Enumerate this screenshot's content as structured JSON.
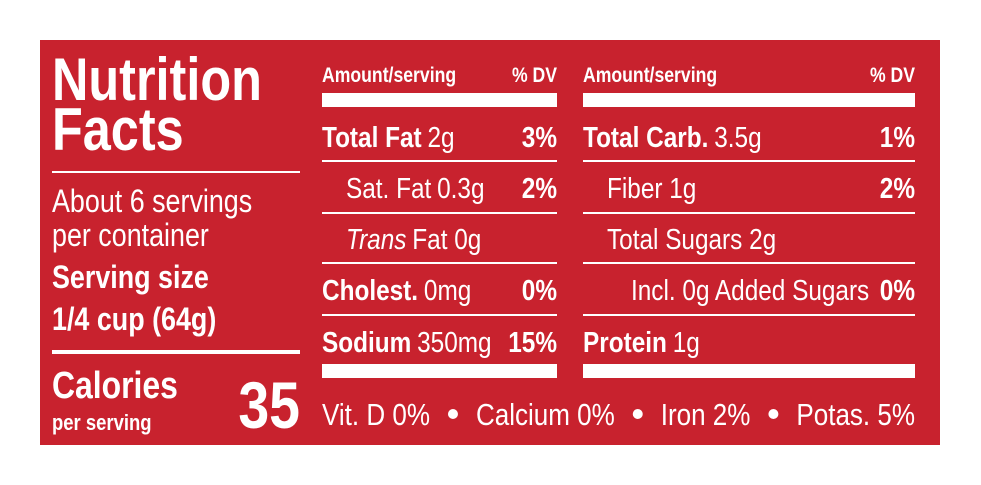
{
  "title": [
    "Nutrition",
    "Facts"
  ],
  "servings": [
    "About 6 servings",
    "per container"
  ],
  "serving_size": {
    "label": "Serving size",
    "amount": "1/4 cup (64g)"
  },
  "calories": {
    "label": "Calories",
    "sub": "per serving",
    "value": 35
  },
  "columns": [
    {
      "header": {
        "amount": "Amount/serving",
        "dv": "% DV"
      },
      "rows": [
        {
          "parts": [
            {
              "text": "Total Fat",
              "style": "bold"
            },
            {
              "text": "2g"
            }
          ],
          "dv": "3%"
        },
        {
          "parts": [
            {
              "text": "Sat. Fat"
            },
            {
              "text": "0.3g"
            }
          ],
          "dv": "2%"
        },
        {
          "parts": [
            {
              "text": "Trans",
              "style": "italic"
            },
            {
              "text": "Fat 0g"
            }
          ]
        },
        {
          "parts": [
            {
              "text": "Cholest.",
              "style": "bold"
            },
            {
              "text": "0mg"
            }
          ],
          "dv": "0%"
        },
        {
          "parts": [
            {
              "text": "Sodium",
              "style": "bold"
            },
            {
              "text": "350mg"
            }
          ],
          "dv": "15%"
        }
      ]
    },
    {
      "header": {
        "amount": "Amount/serving",
        "dv": "% DV"
      },
      "rows": [
        {
          "parts": [
            {
              "text": "Total Carb.",
              "style": "bold"
            },
            {
              "text": "3.5g"
            }
          ],
          "dv": "1%"
        },
        {
          "parts": [
            {
              "text": "Fiber 1g"
            }
          ],
          "dv": "2%"
        },
        {
          "parts": [
            {
              "text": "Total Sugars 2g"
            }
          ]
        },
        {
          "parts": [
            {
              "text": "Incl. 0g Added Sugars"
            }
          ],
          "dv": "0%"
        },
        {
          "parts": [
            {
              "text": "Protein",
              "style": "bold"
            },
            {
              "text": "1g"
            }
          ]
        }
      ]
    }
  ],
  "footer": [
    "Vit. D 0%",
    "Calcium 0%",
    "Iron 2%",
    "Potas. 5%"
  ]
}
